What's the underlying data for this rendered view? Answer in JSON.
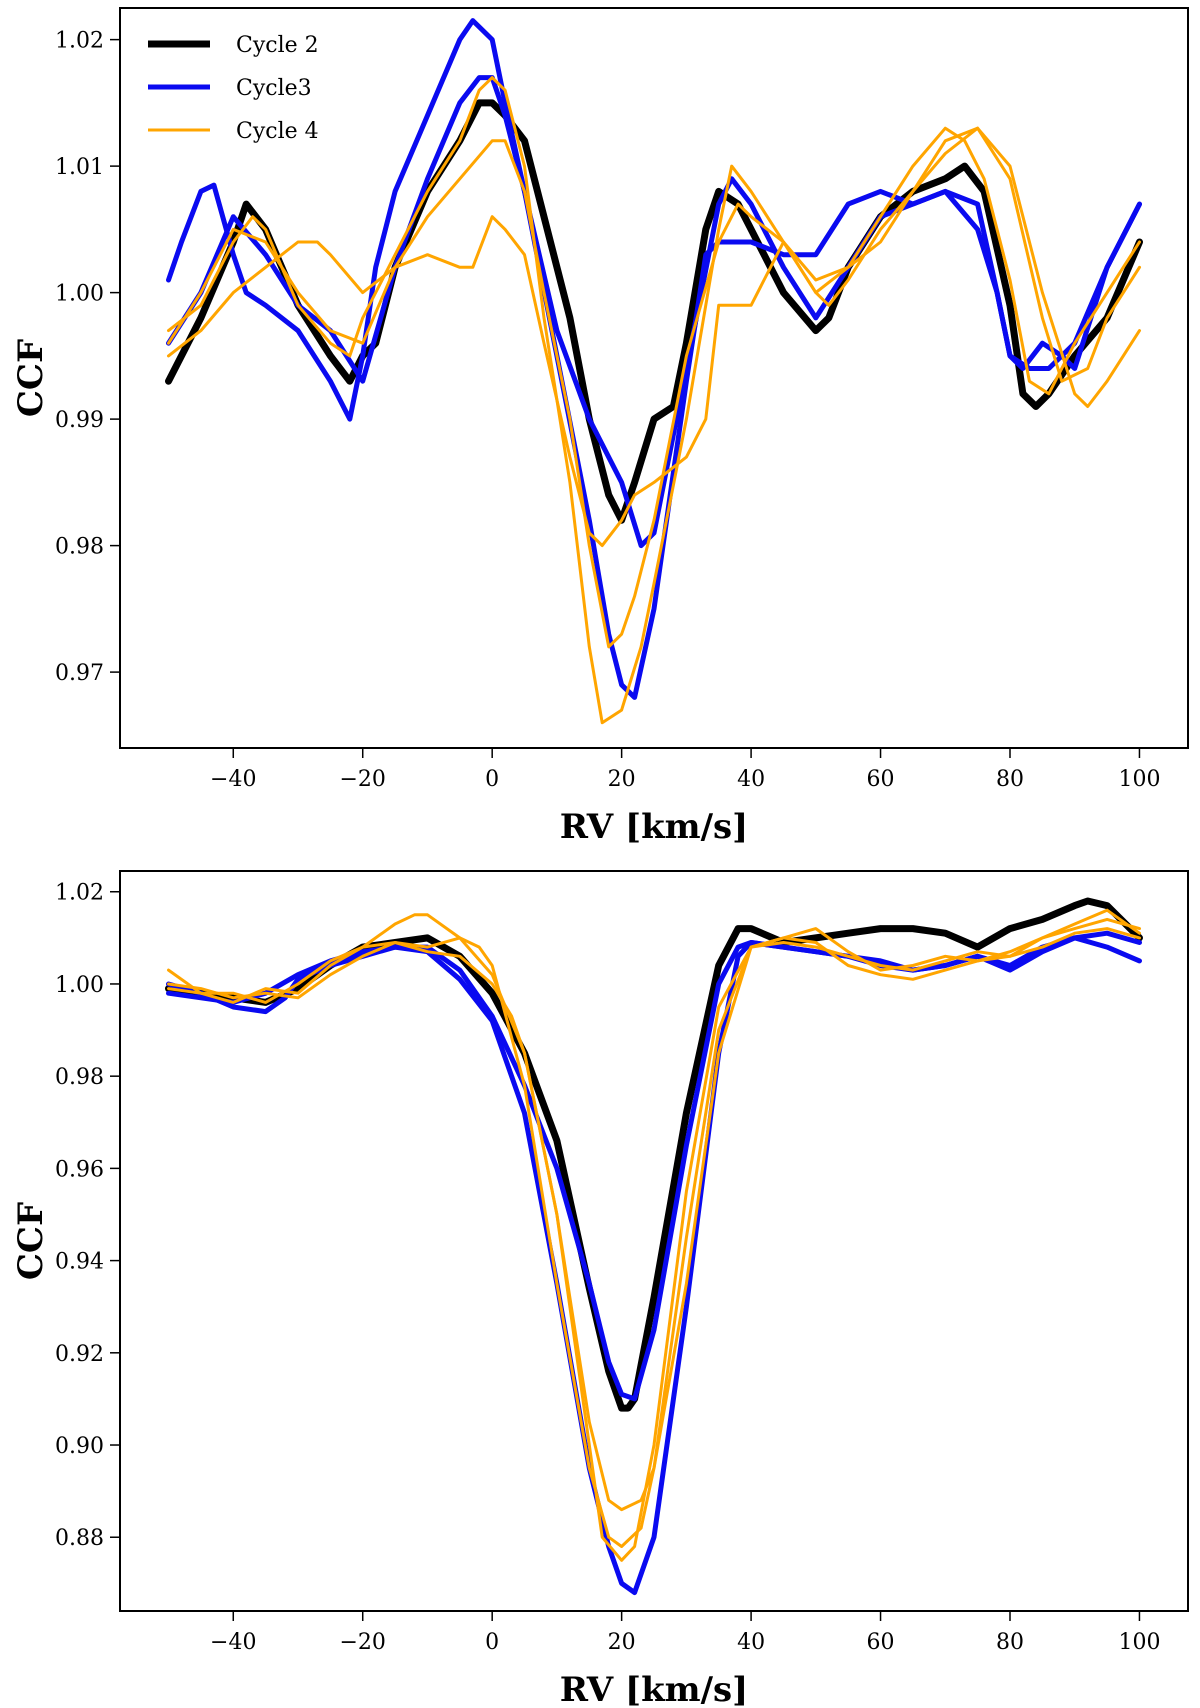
{
  "colors": {
    "cycle2": "#000000",
    "cycle3": "#0a0af0",
    "cycle4": "#ffa500"
  },
  "legend": [
    {
      "label": "Cycle 2",
      "color": "#000000",
      "series": "cycle2"
    },
    {
      "label": "Cycle3",
      "color": "#0a0af0",
      "series": "cycle3"
    },
    {
      "label": "Cycle 4",
      "color": "#ffa500",
      "series": "cycle4"
    }
  ],
  "chart_data": [
    {
      "type": "line",
      "title": "",
      "xlabel": "RV [km/s]",
      "ylabel": "CCF",
      "xlim": [
        -57.5,
        107.5
      ],
      "ylim": [
        0.964,
        1.0225
      ],
      "xticks": [
        -40,
        -20,
        0,
        20,
        40,
        60,
        80,
        100
      ],
      "xtick_labels": [
        "−40",
        "−20",
        "0",
        "20",
        "40",
        "60",
        "80",
        "100"
      ],
      "yticks": [
        0.97,
        0.98,
        0.99,
        1.0,
        1.01,
        1.02
      ],
      "ytick_labels": [
        "0.97",
        "0.98",
        "0.99",
        "1.00",
        "1.01",
        "1.02"
      ],
      "legend_position": "top-left",
      "series": [
        {
          "name": "Cycle 2",
          "group": "cycle2",
          "x": [
            -50,
            -45,
            -40,
            -38,
            -35,
            -30,
            -25,
            -22,
            -20,
            -18,
            -15,
            -10,
            -5,
            -2,
            0,
            2,
            5,
            8,
            12,
            15,
            18,
            20,
            22,
            25,
            28,
            30,
            33,
            35,
            38,
            40,
            45,
            50,
            52,
            55,
            60,
            65,
            70,
            73,
            76,
            80,
            82,
            84,
            86,
            90,
            95,
            100
          ],
          "y": [
            0.993,
            0.998,
            1.004,
            1.007,
            1.005,
            0.999,
            0.995,
            0.993,
            0.995,
            0.996,
            1.002,
            1.008,
            1.012,
            1.015,
            1.015,
            1.014,
            1.012,
            1.006,
            0.998,
            0.99,
            0.984,
            0.982,
            0.985,
            0.99,
            0.991,
            0.996,
            1.005,
            1.008,
            1.007,
            1.005,
            1.0,
            0.997,
            0.998,
            1.002,
            1.006,
            1.008,
            1.009,
            1.01,
            1.008,
            0.999,
            0.992,
            0.991,
            0.992,
            0.995,
            0.998,
            1.004
          ]
        },
        {
          "name": "Cycle3 a",
          "group": "cycle3",
          "x": [
            -50,
            -48,
            -45,
            -43,
            -40,
            -38,
            -35,
            -30,
            -25,
            -22,
            -20,
            -18,
            -15,
            -10,
            -5,
            -3,
            0,
            2,
            5,
            10,
            15,
            18,
            20,
            22,
            25,
            30,
            33,
            35,
            38,
            40,
            45,
            50,
            55,
            60,
            65,
            70,
            75,
            78,
            80,
            82,
            85,
            88,
            90,
            95,
            100
          ],
          "y": [
            1.001,
            1.004,
            1.008,
            1.0085,
            1.003,
            1.0,
            0.999,
            0.997,
            0.993,
            0.99,
            0.995,
            1.002,
            1.008,
            1.014,
            1.02,
            1.0215,
            1.02,
            1.015,
            1.008,
            0.995,
            0.982,
            0.973,
            0.969,
            0.968,
            0.975,
            0.993,
            1.003,
            1.004,
            1.004,
            1.004,
            1.003,
            1.003,
            1.007,
            1.008,
            1.007,
            1.008,
            1.007,
            1.0,
            0.995,
            0.994,
            0.996,
            0.995,
            0.994,
            1.002,
            1.007
          ]
        },
        {
          "name": "Cycle3 b",
          "group": "cycle3",
          "x": [
            -50,
            -45,
            -40,
            -35,
            -30,
            -25,
            -20,
            -15,
            -10,
            -5,
            -2,
            0,
            2,
            5,
            10,
            15,
            18,
            20,
            23,
            25,
            30,
            35,
            37,
            40,
            45,
            50,
            55,
            60,
            65,
            70,
            75,
            78,
            80,
            83,
            86,
            90,
            95,
            100
          ],
          "y": [
            0.996,
            1.0,
            1.006,
            1.003,
            0.999,
            0.997,
            0.993,
            1.002,
            1.009,
            1.015,
            1.017,
            1.017,
            1.014,
            1.008,
            0.997,
            0.99,
            0.987,
            0.985,
            0.98,
            0.981,
            0.994,
            1.007,
            1.009,
            1.007,
            1.002,
            0.998,
            1.002,
            1.006,
            1.007,
            1.008,
            1.005,
            1.0,
            0.995,
            0.994,
            0.994,
            0.996,
            1.002,
            1.007
          ]
        },
        {
          "name": "Cycle 4 a",
          "group": "cycle4",
          "x": [
            -50,
            -45,
            -40,
            -37,
            -35,
            -30,
            -25,
            -22,
            -20,
            -15,
            -10,
            -5,
            -2,
            0,
            2,
            5,
            8,
            12,
            15,
            17,
            20,
            23,
            25,
            30,
            35,
            37,
            40,
            45,
            50,
            55,
            60,
            65,
            70,
            73,
            76,
            80,
            83,
            86,
            90,
            95,
            100
          ],
          "y": [
            0.997,
            0.999,
            1.004,
            1.006,
            1.005,
            0.999,
            0.996,
            0.995,
            0.998,
            1.003,
            1.008,
            1.012,
            1.016,
            1.017,
            1.016,
            1.01,
            0.998,
            0.985,
            0.972,
            0.966,
            0.967,
            0.972,
            0.977,
            0.99,
            1.005,
            1.01,
            1.008,
            1.004,
            1.001,
            1.002,
            1.006,
            1.01,
            1.013,
            1.012,
            1.009,
            1.001,
            0.993,
            0.992,
            0.996,
            1.0,
            1.004
          ]
        },
        {
          "name": "Cycle 4 b",
          "group": "cycle4",
          "x": [
            -50,
            -45,
            -40,
            -35,
            -30,
            -25,
            -20,
            -15,
            -10,
            -5,
            0,
            2,
            5,
            8,
            12,
            15,
            18,
            20,
            22,
            25,
            30,
            35,
            38,
            40,
            45,
            50,
            52,
            55,
            60,
            65,
            70,
            75,
            80,
            85,
            88,
            92,
            95,
            100
          ],
          "y": [
            0.996,
            1.0,
            1.005,
            1.004,
            1.0,
            0.997,
            0.996,
            1.002,
            1.006,
            1.009,
            1.012,
            1.012,
            1.008,
            1.0,
            0.99,
            0.98,
            0.972,
            0.973,
            0.976,
            0.982,
            0.995,
            1.004,
            1.007,
            1.006,
            1.004,
            1.0,
            0.999,
            1.001,
            1.005,
            1.008,
            1.011,
            1.013,
            1.009,
            0.998,
            0.993,
            0.994,
            0.998,
            1.002
          ]
        },
        {
          "name": "Cycle 4 c",
          "group": "cycle4",
          "x": [
            -50,
            -45,
            -40,
            -35,
            -30,
            -27,
            -25,
            -20,
            -15,
            -10,
            -5,
            -3,
            0,
            2,
            5,
            8,
            12,
            15,
            17,
            20,
            22,
            25,
            30,
            33,
            35,
            40,
            45,
            50,
            55,
            60,
            65,
            70,
            75,
            80,
            85,
            90,
            92,
            95,
            100
          ],
          "y": [
            0.995,
            0.997,
            1.0,
            1.002,
            1.004,
            1.004,
            1.003,
            1.0,
            1.002,
            1.003,
            1.002,
            1.002,
            1.006,
            1.005,
            1.003,
            0.996,
            0.987,
            0.981,
            0.98,
            0.982,
            0.984,
            0.985,
            0.987,
            0.99,
            0.999,
            0.999,
            1.004,
            1.0,
            1.002,
            1.004,
            1.008,
            1.012,
            1.013,
            1.01,
            1.0,
            0.992,
            0.991,
            0.993,
            0.997
          ]
        }
      ]
    },
    {
      "type": "line",
      "title": "",
      "xlabel": "RV [km/s]",
      "ylabel": "CCF",
      "xlim": [
        -57.5,
        107.5
      ],
      "ylim": [
        0.864,
        1.0245
      ],
      "xticks": [
        -40,
        -20,
        0,
        20,
        40,
        60,
        80,
        100
      ],
      "xtick_labels": [
        "−40",
        "−20",
        "0",
        "20",
        "40",
        "60",
        "80",
        "100"
      ],
      "yticks": [
        0.88,
        0.9,
        0.92,
        0.94,
        0.96,
        0.98,
        1.0,
        1.02
      ],
      "ytick_labels": [
        "0.88",
        "0.90",
        "0.92",
        "0.94",
        "0.96",
        "0.98",
        "1.00",
        "1.02"
      ],
      "series": [
        {
          "name": "Cycle 2",
          "group": "cycle2",
          "x": [
            -50,
            -45,
            -40,
            -35,
            -30,
            -25,
            -20,
            -15,
            -10,
            -5,
            0,
            5,
            10,
            15,
            18,
            20,
            21,
            22,
            25,
            30,
            35,
            38,
            40,
            45,
            50,
            55,
            60,
            65,
            70,
            75,
            80,
            85,
            90,
            92,
            95,
            100
          ],
          "y": [
            0.999,
            0.998,
            0.997,
            0.996,
            0.999,
            1.004,
            1.008,
            1.009,
            1.01,
            1.006,
            0.998,
            0.985,
            0.966,
            0.934,
            0.916,
            0.908,
            0.908,
            0.91,
            0.932,
            0.972,
            1.004,
            1.012,
            1.012,
            1.009,
            1.01,
            1.011,
            1.012,
            1.012,
            1.011,
            1.008,
            1.012,
            1.014,
            1.017,
            1.018,
            1.017,
            1.01
          ]
        },
        {
          "name": "Cycle3 a",
          "group": "cycle3",
          "x": [
            -50,
            -45,
            -40,
            -35,
            -32,
            -30,
            -25,
            -20,
            -15,
            -10,
            -5,
            0,
            5,
            10,
            15,
            18,
            20,
            22,
            25,
            30,
            35,
            38,
            40,
            45,
            50,
            55,
            60,
            65,
            70,
            75,
            80,
            85,
            90,
            95,
            100
          ],
          "y": [
            1.0,
            0.998,
            0.995,
            0.994,
            0.997,
            1.001,
            1.004,
            1.006,
            1.008,
            1.007,
            1.001,
            0.992,
            0.972,
            0.935,
            0.895,
            0.878,
            0.87,
            0.868,
            0.88,
            0.93,
            0.985,
            1.006,
            1.009,
            1.008,
            1.007,
            1.006,
            1.004,
            1.003,
            1.004,
            1.006,
            1.004,
            1.008,
            1.01,
            1.011,
            1.009
          ]
        },
        {
          "name": "Cycle3 b",
          "group": "cycle3",
          "x": [
            -50,
            -45,
            -40,
            -35,
            -30,
            -25,
            -20,
            -15,
            -10,
            -5,
            0,
            5,
            10,
            15,
            18,
            20,
            22,
            25,
            30,
            35,
            38,
            40,
            45,
            50,
            55,
            60,
            65,
            70,
            75,
            80,
            85,
            90,
            95,
            100
          ],
          "y": [
            0.998,
            0.997,
            0.996,
            0.998,
            1.002,
            1.005,
            1.007,
            1.008,
            1.008,
            1.003,
            0.993,
            0.978,
            0.96,
            0.935,
            0.918,
            0.911,
            0.91,
            0.925,
            0.965,
            1.0,
            1.008,
            1.009,
            1.008,
            1.007,
            1.006,
            1.005,
            1.003,
            1.004,
            1.006,
            1.003,
            1.007,
            1.01,
            1.008,
            1.005
          ]
        },
        {
          "name": "Cycle 4 a",
          "group": "cycle4",
          "x": [
            -50,
            -45,
            -40,
            -35,
            -30,
            -25,
            -20,
            -15,
            -12,
            -10,
            -5,
            0,
            5,
            10,
            15,
            17,
            20,
            22,
            25,
            30,
            35,
            40,
            45,
            50,
            55,
            60,
            65,
            70,
            75,
            80,
            85,
            90,
            95,
            100
          ],
          "y": [
            1.003,
            0.998,
            0.996,
            0.999,
            0.998,
            1.004,
            1.008,
            1.013,
            1.015,
            1.015,
            1.01,
            1.002,
            0.985,
            0.95,
            0.9,
            0.88,
            0.875,
            0.878,
            0.9,
            0.955,
            0.995,
            1.008,
            1.01,
            1.009,
            1.004,
            1.002,
            1.001,
            1.003,
            1.005,
            1.007,
            1.01,
            1.013,
            1.016,
            1.011
          ]
        },
        {
          "name": "Cycle 4 b",
          "group": "cycle4",
          "x": [
            -50,
            -45,
            -40,
            -35,
            -30,
            -25,
            -20,
            -15,
            -10,
            -5,
            -2,
            0,
            5,
            10,
            15,
            18,
            20,
            23,
            25,
            30,
            35,
            40,
            45,
            50,
            55,
            60,
            65,
            70,
            75,
            80,
            85,
            90,
            95,
            100
          ],
          "y": [
            1.0,
            0.999,
            0.997,
            0.998,
            0.997,
            1.002,
            1.006,
            1.009,
            1.008,
            1.01,
            1.008,
            1.004,
            0.978,
            0.935,
            0.895,
            0.88,
            0.878,
            0.882,
            0.895,
            0.945,
            0.99,
            1.008,
            1.01,
            1.012,
            1.007,
            1.003,
            1.004,
            1.006,
            1.005,
            1.006,
            1.01,
            1.012,
            1.014,
            1.012
          ]
        },
        {
          "name": "Cycle 4 c",
          "group": "cycle4",
          "x": [
            -50,
            -45,
            -40,
            -35,
            -30,
            -25,
            -20,
            -15,
            -10,
            -5,
            0,
            3,
            5,
            10,
            15,
            18,
            20,
            23,
            25,
            30,
            35,
            40,
            45,
            50,
            55,
            60,
            65,
            70,
            75,
            80,
            85,
            90,
            95,
            100
          ],
          "y": [
            0.999,
            0.998,
            0.998,
            0.996,
            1.0,
            1.005,
            1.008,
            1.009,
            1.007,
            1.006,
            1.0,
            0.993,
            0.985,
            0.95,
            0.905,
            0.888,
            0.886,
            0.888,
            0.895,
            0.935,
            0.985,
            1.008,
            1.009,
            1.008,
            1.006,
            1.004,
            1.003,
            1.005,
            1.007,
            1.006,
            1.008,
            1.011,
            1.012,
            1.01
          ]
        }
      ]
    }
  ]
}
